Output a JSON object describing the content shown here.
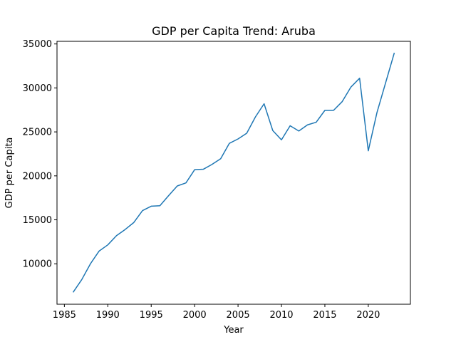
{
  "chart_data": {
    "type": "line",
    "title": "GDP per Capita Trend: Aruba",
    "xlabel": "Year",
    "ylabel": "GDP per Capita",
    "xlim": [
      1984.15,
      2024.85
    ],
    "ylim": [
      5400,
      35300
    ],
    "xticks": [
      1985,
      1990,
      1995,
      2000,
      2005,
      2010,
      2015,
      2020
    ],
    "yticks": [
      10000,
      15000,
      20000,
      25000,
      30000,
      35000
    ],
    "grid": false,
    "legend": "none",
    "series": [
      {
        "color": "#1f77b4",
        "x": [
          1986,
          1987,
          1988,
          1989,
          1990,
          1991,
          1992,
          1993,
          1994,
          1995,
          1996,
          1997,
          1998,
          1999,
          2000,
          2001,
          2002,
          2003,
          2004,
          2005,
          2006,
          2007,
          2008,
          2009,
          2010,
          2011,
          2012,
          2013,
          2014,
          2015,
          2016,
          2017,
          2018,
          2019,
          2020,
          2021,
          2022,
          2023
        ],
        "y": [
          6750,
          8200,
          10000,
          11450,
          12150,
          13200,
          13900,
          14700,
          16050,
          16550,
          16600,
          17750,
          18850,
          19200,
          20700,
          20750,
          21300,
          21950,
          23700,
          24200,
          24850,
          26700,
          28200,
          25150,
          24100,
          25700,
          25100,
          25800,
          26100,
          27450,
          27450,
          28450,
          30100,
          31100,
          22850,
          27200,
          30600,
          34000
        ]
      }
    ]
  }
}
